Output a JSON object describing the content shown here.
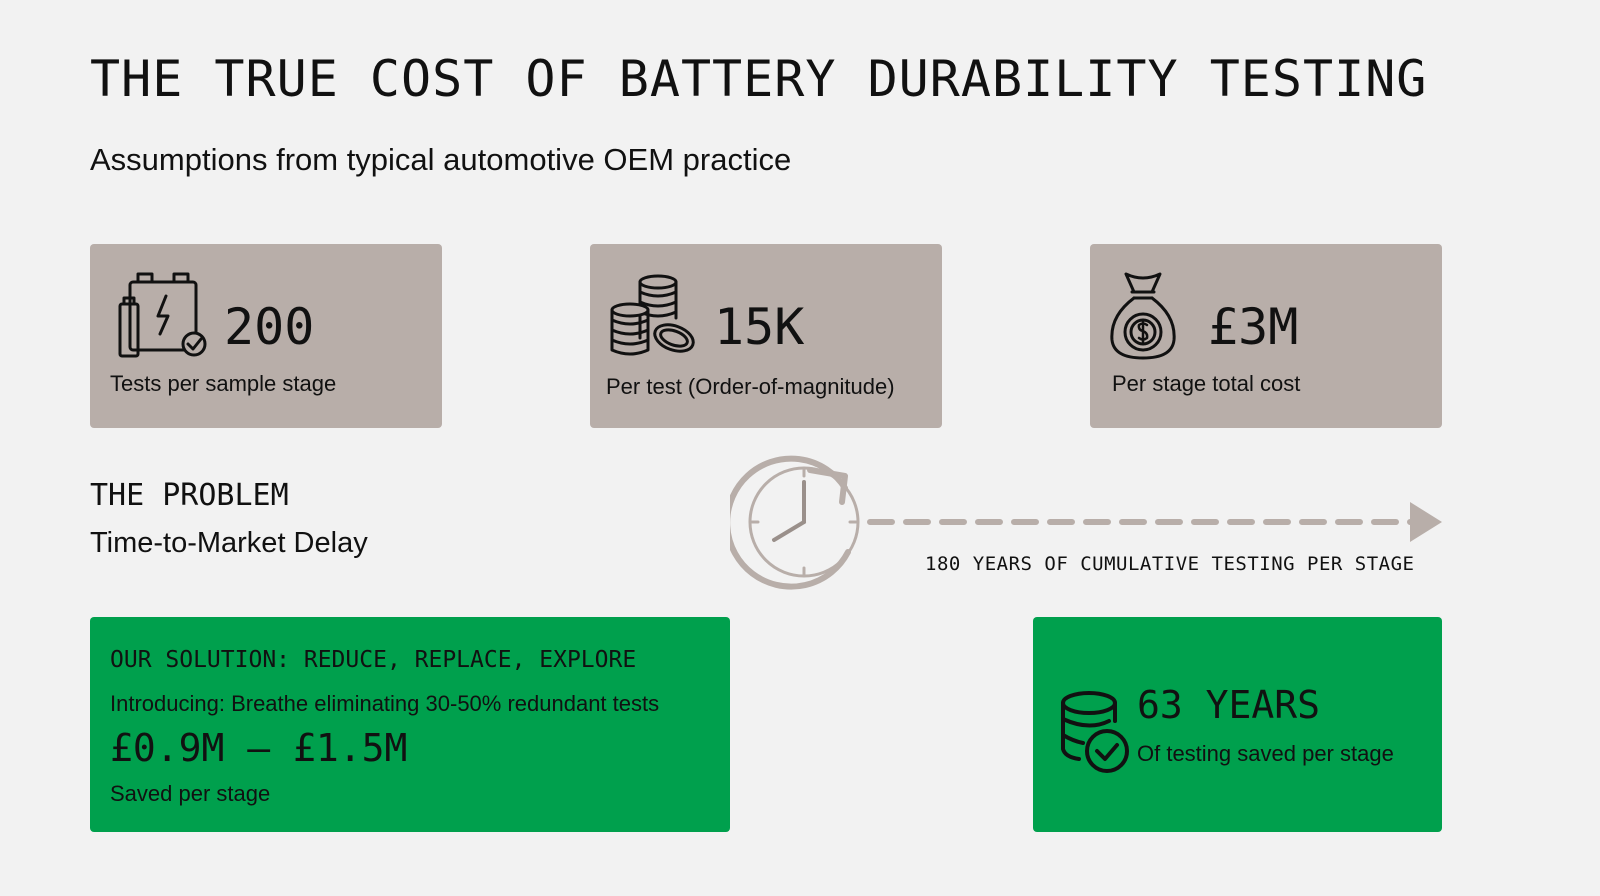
{
  "header": {
    "title": "THE TRUE COST OF BATTERY DURABILITY TESTING",
    "subtitle": "Assumptions from typical automotive OEM practice"
  },
  "stats": [
    {
      "icon": "battery-check-icon",
      "value": "200",
      "label": "Tests per sample stage"
    },
    {
      "icon": "coin-stack-icon",
      "value": "15K",
      "label": "Per test (Order-of-magnitude)"
    },
    {
      "icon": "money-bag-icon",
      "value": "£3M",
      "label": "Per stage total cost"
    }
  ],
  "problem": {
    "heading": "THE PROBLEM",
    "subheading": "Time-to-Market Delay",
    "timeline_label": "180 YEARS OF CUMULATIVE TESTING PER STAGE"
  },
  "solution": {
    "heading": "OUR SOLUTION: REDUCE, REPLACE, EXPLORE",
    "intro": "Introducing: Breathe eliminating 30-50% redundant tests",
    "savings": "£0.9M – £1.5M",
    "savings_label": "Saved per stage"
  },
  "time_saved": {
    "icon": "coins-check-icon",
    "value": "63 YEARS",
    "label": "Of testing saved per stage"
  },
  "colors": {
    "background": "#f2f2f2",
    "card": "#b8aea9",
    "green": "#00a04d",
    "timeline": "#b8aea9"
  }
}
